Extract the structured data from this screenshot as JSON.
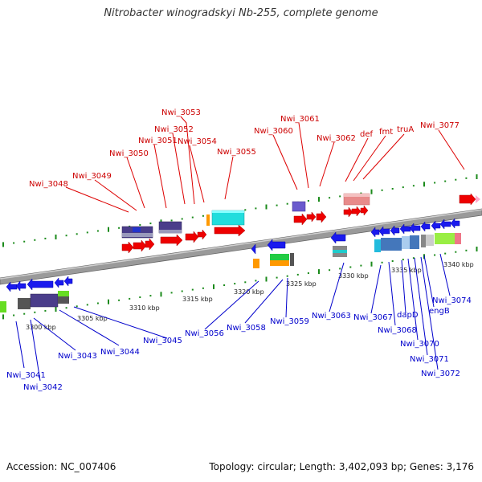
{
  "title": "Nitrobacter winogradskyi Nb-255, complete genome",
  "footer": {
    "accession": "Accession: NC_007406",
    "summary": "Topology: circular; Length: 3,402,093 bp; Genes: 3,176"
  },
  "colors": {
    "forward_label": "#cc0000",
    "reverse_label": "#0000cc",
    "backbone": "#888888",
    "ticks": "#1a8a1a"
  },
  "kbp_labels": [
    "3300 kbp",
    "3305 kbp",
    "3310 kbp",
    "3315 kbp",
    "3320 kbp",
    "3325 kbp",
    "3330 kbp",
    "3335 kbp",
    "3340 kbp"
  ],
  "forward_genes": [
    "Nwi_3048",
    "Nwi_3049",
    "Nwi_3050",
    "Nwi_3051",
    "Nwi_3052",
    "Nwi_3053",
    "Nwi_3054",
    "Nwi_3055",
    "Nwi_3060",
    "Nwi_3061",
    "Nwi_3062",
    "def",
    "fmt",
    "truA",
    "Nwi_3077"
  ],
  "reverse_genes": [
    "Nwi_3041",
    "Nwi_3042",
    "Nwi_3043",
    "Nwi_3044",
    "Nwi_3045",
    "Nwi_3056",
    "Nwi_3058",
    "Nwi_3059",
    "Nwi_3063",
    "Nwi_3067",
    "Nwi_3068",
    "dapD",
    "Nwi_3070",
    "Nwi_3071",
    "Nwi_3072",
    "engB",
    "Nwi_3074"
  ]
}
